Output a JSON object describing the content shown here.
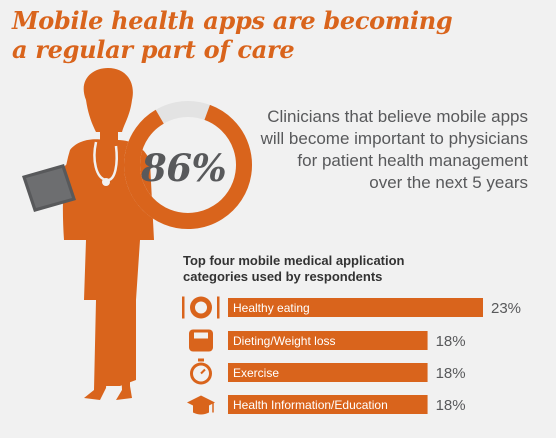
{
  "title": {
    "line1": "Mobile health apps are becoming",
    "line2": "a regular part of care"
  },
  "stat": {
    "value": "86%",
    "fraction": 0.86,
    "description": [
      "Clinicians that believe mobile apps",
      "will become important to physicians",
      "for patient health management",
      "over the next 5 years"
    ]
  },
  "colors": {
    "accent": "#d9641c",
    "text": "#58595b",
    "background": "#f1f1f1"
  },
  "chart_title": [
    "Top four mobile medical application",
    "categories used by respondents"
  ],
  "chart_data": {
    "type": "bar",
    "orientation": "horizontal",
    "categories": [
      "Healthy eating",
      "Dieting/Weight loss",
      "Exercise",
      "Health Information/Education"
    ],
    "values": [
      23,
      18,
      18,
      18
    ],
    "value_labels": [
      "23%",
      "18%",
      "18%",
      "18%"
    ],
    "icons": [
      "plate-icon",
      "scale-icon",
      "stopwatch-icon",
      "graduation-cap-icon"
    ],
    "unit": "%"
  }
}
